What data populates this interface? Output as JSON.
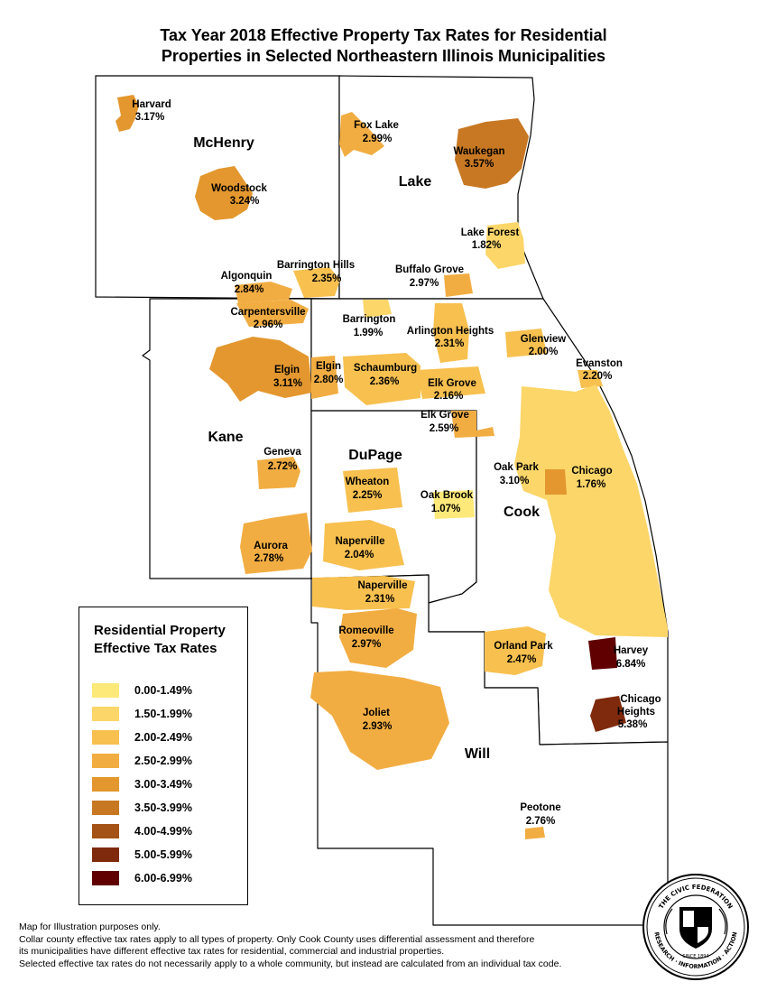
{
  "title_line1": "Tax Year 2018 Effective Property Tax Rates for Residential",
  "title_line2": "Properties in Selected Northeastern Illinois Municipalities",
  "counties": [
    {
      "name": "McHenry"
    },
    {
      "name": "Lake"
    },
    {
      "name": "Kane"
    },
    {
      "name": "DuPage"
    },
    {
      "name": "Cook"
    },
    {
      "name": "Will"
    }
  ],
  "municipalities": [
    {
      "name": "Harvard",
      "rate": "3.17%",
      "bracket": 4
    },
    {
      "name": "Woodstock",
      "rate": "3.24%",
      "bracket": 4
    },
    {
      "name": "Fox Lake",
      "rate": "2.99%",
      "bracket": 3
    },
    {
      "name": "Waukegan",
      "rate": "3.57%",
      "bracket": 5
    },
    {
      "name": "Lake Forest",
      "rate": "1.82%",
      "bracket": 1
    },
    {
      "name": "Algonquin",
      "rate": "2.84%",
      "bracket": 3
    },
    {
      "name": "Barrington Hills",
      "rate": "2.35%",
      "bracket": 2
    },
    {
      "name": "Buffalo Grove",
      "rate": "2.97%",
      "bracket": 3
    },
    {
      "name": "Carpentersville",
      "rate": "2.96%",
      "bracket": 3
    },
    {
      "name": "Barrington",
      "rate": "1.99%",
      "bracket": 1
    },
    {
      "name": "Arlington Heights",
      "rate": "2.31%",
      "bracket": 2
    },
    {
      "name": "Glenview",
      "rate": "2.00%",
      "bracket": 2
    },
    {
      "name": "Evanston",
      "rate": "2.20%",
      "bracket": 2
    },
    {
      "name": "Elgin",
      "rate": "3.11%",
      "bracket": 4
    },
    {
      "name": "Elgin",
      "rate": "2.80%",
      "bracket": 3
    },
    {
      "name": "Schaumburg",
      "rate": "2.36%",
      "bracket": 2
    },
    {
      "name": "Elk Grove",
      "rate": "2.16%",
      "bracket": 2
    },
    {
      "name": "Elk Grove",
      "rate": "2.59%",
      "bracket": 3
    },
    {
      "name": "Geneva",
      "rate": "2.72%",
      "bracket": 3
    },
    {
      "name": "Wheaton",
      "rate": "2.25%",
      "bracket": 2
    },
    {
      "name": "Oak Brook",
      "rate": "1.07%",
      "bracket": 0
    },
    {
      "name": "Oak Park",
      "rate": "3.10%",
      "bracket": 4
    },
    {
      "name": "Chicago",
      "rate": "1.76%",
      "bracket": 1
    },
    {
      "name": "Aurora",
      "rate": "2.78%",
      "bracket": 3
    },
    {
      "name": "Naperville",
      "rate": "2.04%",
      "bracket": 2
    },
    {
      "name": "Naperville",
      "rate": "2.31%",
      "bracket": 2
    },
    {
      "name": "Romeoville",
      "rate": "2.97%",
      "bracket": 3
    },
    {
      "name": "Orland Park",
      "rate": "2.47%",
      "bracket": 2
    },
    {
      "name": "Harvey",
      "rate": "6.84%",
      "bracket": 8
    },
    {
      "name": "Chicago Heights",
      "rate": "5.38%",
      "bracket": 7
    },
    {
      "name": "Joliet",
      "rate": "2.93%",
      "bracket": 3
    },
    {
      "name": "Peotone",
      "rate": "2.76%",
      "bracket": 3
    }
  ],
  "legend": {
    "title_line1": "Residential Property",
    "title_line2": "Effective Tax Rates",
    "items": [
      {
        "label": "0.00-1.49%",
        "color": "#fde97a"
      },
      {
        "label": "1.50-1.99%",
        "color": "#fcd669"
      },
      {
        "label": "2.00-2.49%",
        "color": "#f7c04f"
      },
      {
        "label": "2.50-2.99%",
        "color": "#f2ad42"
      },
      {
        "label": "3.00-3.49%",
        "color": "#e3972e"
      },
      {
        "label": "3.50-3.99%",
        "color": "#c87823"
      },
      {
        "label": "4.00-4.99%",
        "color": "#a45215"
      },
      {
        "label": "5.00-5.99%",
        "color": "#7f2a0c"
      },
      {
        "label": "6.00-6.99%",
        "color": "#600000"
      }
    ]
  },
  "notes": [
    "Map for Illustration purposes only.",
    "Collar county effective tax rates apply to all types of property. Only Cook County uses differential assessment and therefore",
    "its municipalities have different effective tax rates for residential, commercial and industrial properties.",
    "Selected effective tax rates do not necessarily apply to a whole community, but instead are calculated from an individual tax code."
  ],
  "seal": {
    "top_text": "THE CIVIC FEDERATION",
    "bottom_text": "RESEARCH · INFORMATION · ACTION",
    "founded": "SINCE 1894"
  }
}
